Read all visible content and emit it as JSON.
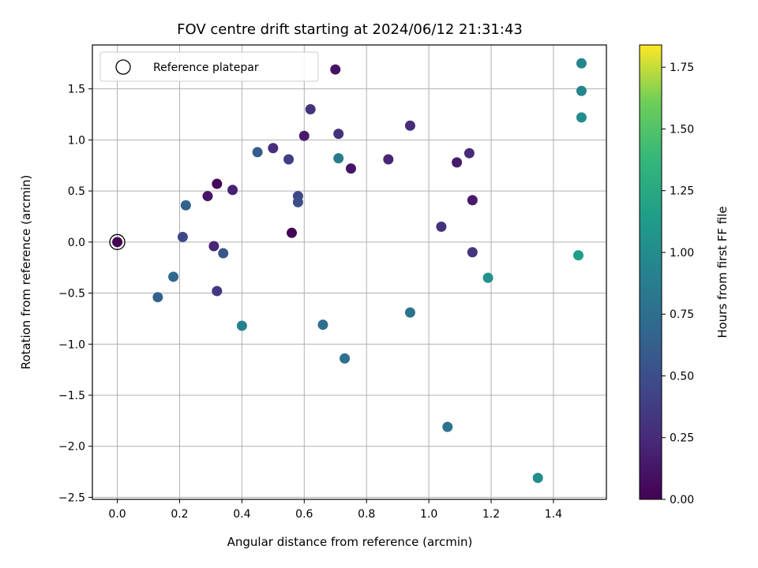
{
  "chart_data": {
    "type": "scatter",
    "title": "FOV centre drift starting at 2024/06/12 21:31:43",
    "xlabel": "Angular distance from reference (arcmin)",
    "ylabel": "Rotation from reference (arcmin)",
    "xlim": [
      -0.08,
      1.57
    ],
    "ylim": [
      -2.52,
      1.93
    ],
    "xticks": [
      0.0,
      0.2,
      0.4,
      0.6,
      0.8,
      1.0,
      1.2,
      1.4
    ],
    "xtick_labels": [
      "0.0",
      "0.2",
      "0.4",
      "0.6",
      "0.8",
      "1.0",
      "1.2",
      "1.4"
    ],
    "yticks": [
      -2.5,
      -2.0,
      -1.5,
      -1.0,
      -0.5,
      0.0,
      0.5,
      1.0,
      1.5
    ],
    "ytick_labels": [
      "−2.5",
      "−2.0",
      "−1.5",
      "−1.0",
      "−0.5",
      "0.0",
      "0.5",
      "1.0",
      "1.5"
    ],
    "grid": true,
    "legend": {
      "position": "top-left",
      "entries": [
        "Reference platepar"
      ]
    },
    "reference_point": {
      "x": 0.0,
      "y": 0.0,
      "marker": "open-circle"
    },
    "colorbar": {
      "label": "Hours from first FF file",
      "colormap": "viridis",
      "range": [
        0.0,
        1.84
      ],
      "ticks": [
        0.0,
        0.25,
        0.5,
        0.75,
        1.0,
        1.25,
        1.5,
        1.75
      ],
      "tick_labels": [
        "0.00",
        "0.25",
        "0.50",
        "0.75",
        "1.00",
        "1.25",
        "1.50",
        "1.75"
      ]
    },
    "points": [
      {
        "x": 0.0,
        "y": 0.0,
        "c": 0.0
      },
      {
        "x": 0.7,
        "y": 1.69,
        "c": 0.1
      },
      {
        "x": 0.32,
        "y": 0.57,
        "c": 0.02
      },
      {
        "x": 0.56,
        "y": 0.09,
        "c": 0.02
      },
      {
        "x": 0.75,
        "y": 0.72,
        "c": 0.12
      },
      {
        "x": 0.29,
        "y": 0.45,
        "c": 0.12
      },
      {
        "x": 1.09,
        "y": 0.78,
        "c": 0.15
      },
      {
        "x": 1.14,
        "y": 0.41,
        "c": 0.15
      },
      {
        "x": 0.6,
        "y": 1.04,
        "c": 0.15
      },
      {
        "x": 0.87,
        "y": 0.81,
        "c": 0.22
      },
      {
        "x": 0.37,
        "y": 0.51,
        "c": 0.2
      },
      {
        "x": 0.31,
        "y": -0.04,
        "c": 0.22
      },
      {
        "x": 1.13,
        "y": 0.87,
        "c": 0.25
      },
      {
        "x": 0.94,
        "y": 1.14,
        "c": 0.26
      },
      {
        "x": 0.5,
        "y": 0.92,
        "c": 0.28
      },
      {
        "x": 0.71,
        "y": 1.06,
        "c": 0.3
      },
      {
        "x": 0.62,
        "y": 1.3,
        "c": 0.3
      },
      {
        "x": 1.04,
        "y": 0.15,
        "c": 0.3
      },
      {
        "x": 1.14,
        "y": -0.1,
        "c": 0.32
      },
      {
        "x": 0.32,
        "y": -0.48,
        "c": 0.35
      },
      {
        "x": 0.55,
        "y": 0.81,
        "c": 0.38
      },
      {
        "x": 0.21,
        "y": 0.05,
        "c": 0.45
      },
      {
        "x": 0.58,
        "y": 0.45,
        "c": 0.45
      },
      {
        "x": 0.58,
        "y": 0.39,
        "c": 0.5
      },
      {
        "x": 0.34,
        "y": -0.11,
        "c": 0.55
      },
      {
        "x": 0.45,
        "y": 0.88,
        "c": 0.6
      },
      {
        "x": 0.22,
        "y": 0.36,
        "c": 0.65
      },
      {
        "x": 0.13,
        "y": -0.54,
        "c": 0.65
      },
      {
        "x": 0.18,
        "y": -0.34,
        "c": 0.7
      },
      {
        "x": 0.66,
        "y": -0.81,
        "c": 0.75
      },
      {
        "x": 0.73,
        "y": -1.14,
        "c": 0.75
      },
      {
        "x": 0.94,
        "y": -0.69,
        "c": 0.8
      },
      {
        "x": 1.06,
        "y": -1.81,
        "c": 0.8
      },
      {
        "x": 0.71,
        "y": 0.82,
        "c": 0.85
      },
      {
        "x": 0.4,
        "y": -0.82,
        "c": 0.9
      },
      {
        "x": 1.49,
        "y": 1.75,
        "c": 0.95
      },
      {
        "x": 1.49,
        "y": 1.48,
        "c": 0.95
      },
      {
        "x": 1.49,
        "y": 1.22,
        "c": 1.0
      },
      {
        "x": 1.35,
        "y": -2.31,
        "c": 1.0
      },
      {
        "x": 1.19,
        "y": -0.35,
        "c": 1.05
      },
      {
        "x": 1.48,
        "y": -0.13,
        "c": 1.15
      }
    ]
  }
}
